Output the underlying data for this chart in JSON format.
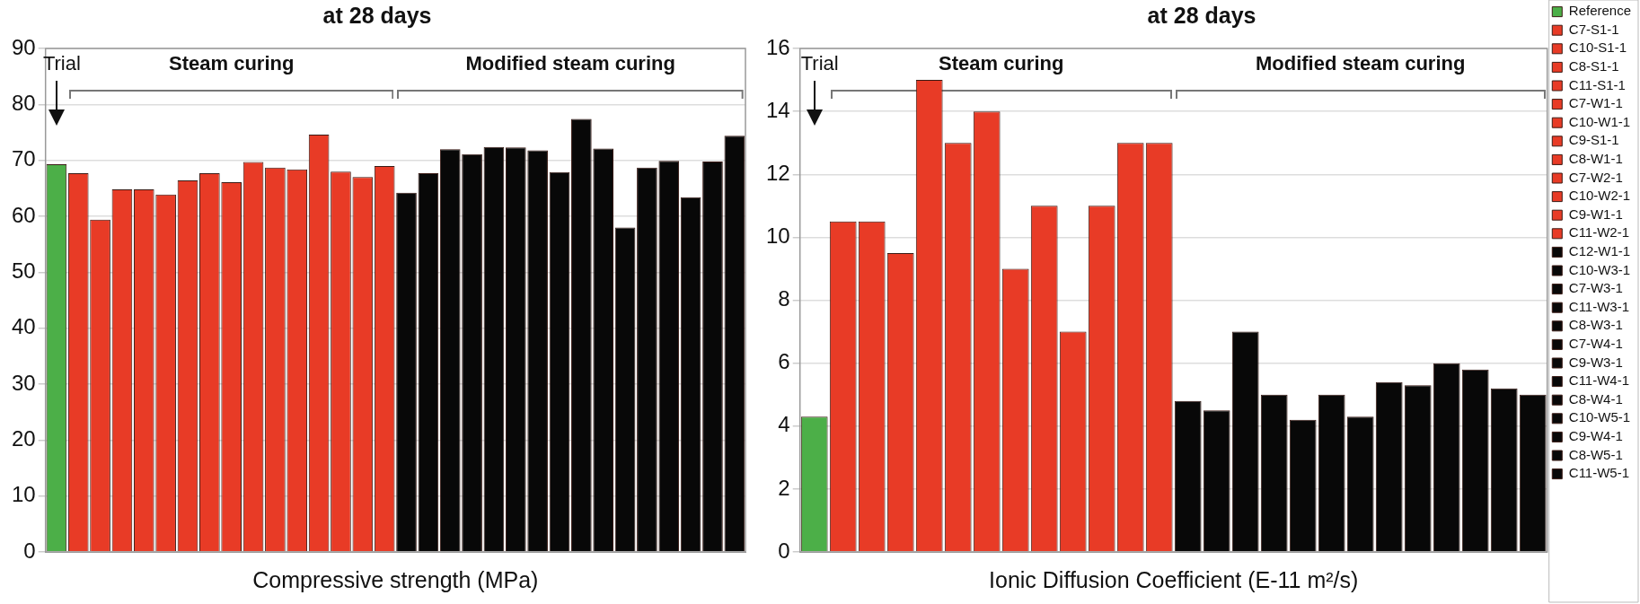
{
  "chart_data": [
    {
      "type": "bar",
      "title": "at 28 days",
      "xlabel": "Compressive strength (MPa)",
      "categories": [
        null,
        null,
        null,
        null,
        null,
        null,
        null,
        null,
        null,
        null,
        null,
        null,
        null,
        null,
        null,
        null,
        null,
        null,
        null,
        null,
        null,
        null,
        null,
        null,
        null,
        null,
        null,
        null,
        null,
        null,
        null,
        null
      ],
      "values": [
        69.3,
        67.7,
        59.4,
        64.8,
        64.8,
        63.9,
        66.4,
        67.7,
        66.1,
        69.7,
        68.7,
        68.4,
        74.6,
        68.0,
        67.0,
        69.0,
        64.2,
        67.7,
        72.0,
        71.1,
        72.4,
        72.3,
        71.8,
        67.9,
        77.4,
        72.1,
        58.0,
        68.7,
        69.9,
        63.4,
        69.8,
        74.4
      ],
      "colors": [
        "#4caf48",
        "#e83b26",
        "#e83b26",
        "#e83b26",
        "#e83b26",
        "#e83b26",
        "#e83b26",
        "#e83b26",
        "#e83b26",
        "#e83b26",
        "#e83b26",
        "#e83b26",
        "#e83b26",
        "#e83b26",
        "#e83b26",
        "#e83b26",
        "#080808",
        "#080808",
        "#080808",
        "#080808",
        "#080808",
        "#080808",
        "#080808",
        "#080808",
        "#080808",
        "#080808",
        "#080808",
        "#080808",
        "#080808",
        "#080808",
        "#080808",
        "#080808"
      ],
      "ylim": [
        0,
        90
      ],
      "yticks": [
        0,
        10,
        20,
        30,
        40,
        50,
        60,
        70,
        80,
        90
      ],
      "grid": "y",
      "tick_labels": "y",
      "annotations": [
        "Trial",
        "Steam curing",
        "Modified steam curing"
      ]
    },
    {
      "type": "bar",
      "title": "at 28 days",
      "xlabel": "Ionic Diffusion Coefficient (E-11 m²/s)",
      "categories": [
        null,
        null,
        null,
        null,
        null,
        null,
        null,
        null,
        null,
        null,
        null,
        null,
        null,
        null,
        null,
        null,
        null,
        null,
        null,
        null,
        null,
        null,
        null,
        null,
        null,
        null
      ],
      "series": [
        {
          "name": "Reference",
          "color": "#4caf48",
          "values": [
            4.3,
            null,
            null,
            null,
            null,
            null,
            null,
            null,
            null,
            null,
            null,
            null,
            null,
            null,
            null,
            null,
            null,
            null,
            null,
            null,
            null,
            null,
            null,
            null,
            null,
            null
          ]
        },
        {
          "name": "C7-S1-1",
          "color": "#e83b26",
          "values": [
            null,
            10.5,
            null,
            null,
            null,
            null,
            null,
            null,
            null,
            null,
            null,
            null,
            null,
            null,
            null,
            null,
            null,
            null,
            null,
            null,
            null,
            null,
            null,
            null,
            null,
            null
          ]
        },
        {
          "name": "C10-S1-1",
          "color": "#e83b26",
          "values": [
            null,
            null,
            10.5,
            null,
            null,
            null,
            null,
            null,
            null,
            null,
            null,
            null,
            null,
            null,
            null,
            null,
            null,
            null,
            null,
            null,
            null,
            null,
            null,
            null,
            null,
            null
          ]
        },
        {
          "name": "C8-S1-1",
          "color": "#e83b26",
          "values": [
            null,
            null,
            null,
            9.5,
            null,
            null,
            null,
            null,
            null,
            null,
            null,
            null,
            null,
            null,
            null,
            null,
            null,
            null,
            null,
            null,
            null,
            null,
            null,
            null,
            null,
            null
          ]
        },
        {
          "name": "C11-S1-1",
          "color": "#e83b26",
          "values": [
            null,
            null,
            null,
            null,
            15.0,
            null,
            null,
            null,
            null,
            null,
            null,
            null,
            null,
            null,
            null,
            null,
            null,
            null,
            null,
            null,
            null,
            null,
            null,
            null,
            null,
            null
          ]
        },
        {
          "name": "C7-W1-1",
          "color": "#e83b26",
          "values": [
            null,
            null,
            null,
            null,
            null,
            13.0,
            null,
            null,
            null,
            null,
            null,
            null,
            null,
            null,
            null,
            null,
            null,
            null,
            null,
            null,
            null,
            null,
            null,
            null,
            null,
            null
          ]
        },
        {
          "name": "C10-W1-1",
          "color": "#e83b26",
          "values": [
            null,
            null,
            null,
            null,
            null,
            null,
            14.0,
            null,
            null,
            null,
            null,
            null,
            null,
            null,
            null,
            null,
            null,
            null,
            null,
            null,
            null,
            null,
            null,
            null,
            null,
            null
          ]
        },
        {
          "name": "C9-S1-1",
          "color": "#e83b26",
          "values": [
            null,
            null,
            null,
            null,
            null,
            null,
            null,
            9.0,
            null,
            null,
            null,
            null,
            null,
            null,
            null,
            null,
            null,
            null,
            null,
            null,
            null,
            null,
            null,
            null,
            null,
            null
          ]
        },
        {
          "name": "C8-W1-1",
          "color": "#e83b26",
          "values": [
            null,
            null,
            null,
            null,
            null,
            null,
            null,
            null,
            11.0,
            null,
            null,
            null,
            null,
            null,
            null,
            null,
            null,
            null,
            null,
            null,
            null,
            null,
            null,
            null,
            null,
            null
          ]
        },
        {
          "name": "C7-W2-1",
          "color": "#e83b26",
          "values": [
            null,
            null,
            null,
            null,
            null,
            null,
            null,
            null,
            null,
            7.0,
            null,
            null,
            null,
            null,
            null,
            null,
            null,
            null,
            null,
            null,
            null,
            null,
            null,
            null,
            null,
            null
          ]
        },
        {
          "name": "C10-W2-1",
          "color": "#e83b26",
          "values": [
            null,
            null,
            null,
            null,
            null,
            null,
            null,
            null,
            null,
            null,
            11.0,
            null,
            null,
            null,
            null,
            null,
            null,
            null,
            null,
            null,
            null,
            null,
            null,
            null,
            null,
            null
          ]
        },
        {
          "name": "C9-W1-1",
          "color": "#e83b26",
          "values": [
            null,
            null,
            null,
            null,
            null,
            null,
            null,
            null,
            null,
            null,
            null,
            13.0,
            null,
            null,
            null,
            null,
            null,
            null,
            null,
            null,
            null,
            null,
            null,
            null,
            null,
            null
          ]
        },
        {
          "name": "C11-W2-1",
          "color": "#e83b26",
          "values": [
            null,
            null,
            null,
            null,
            null,
            null,
            null,
            null,
            null,
            null,
            null,
            null,
            13.0,
            null,
            null,
            null,
            null,
            null,
            null,
            null,
            null,
            null,
            null,
            null,
            null,
            null
          ]
        },
        {
          "name": "C12-W1-1",
          "color": "#080808",
          "values": [
            null,
            null,
            null,
            null,
            null,
            null,
            null,
            null,
            null,
            null,
            null,
            null,
            null,
            4.8,
            null,
            null,
            null,
            null,
            null,
            null,
            null,
            null,
            null,
            null,
            null,
            null
          ]
        },
        {
          "name": "C10-W3-1",
          "color": "#080808",
          "values": [
            null,
            null,
            null,
            null,
            null,
            null,
            null,
            null,
            null,
            null,
            null,
            null,
            null,
            null,
            4.5,
            null,
            null,
            null,
            null,
            null,
            null,
            null,
            null,
            null,
            null,
            null
          ]
        },
        {
          "name": "C7-W3-1",
          "color": "#080808",
          "values": [
            null,
            null,
            null,
            null,
            null,
            null,
            null,
            null,
            null,
            null,
            null,
            null,
            null,
            null,
            null,
            7.0,
            null,
            null,
            null,
            null,
            null,
            null,
            null,
            null,
            null,
            null
          ]
        },
        {
          "name": "C11-W3-1",
          "color": "#080808",
          "values": [
            null,
            null,
            null,
            null,
            null,
            null,
            null,
            null,
            null,
            null,
            null,
            null,
            null,
            null,
            null,
            null,
            5.0,
            null,
            null,
            null,
            null,
            null,
            null,
            null,
            null,
            null
          ]
        },
        {
          "name": "C8-W3-1",
          "color": "#080808",
          "values": [
            null,
            null,
            null,
            null,
            null,
            null,
            null,
            null,
            null,
            null,
            null,
            null,
            null,
            null,
            null,
            null,
            null,
            4.2,
            null,
            null,
            null,
            null,
            null,
            null,
            null,
            null
          ]
        },
        {
          "name": "C7-W4-1",
          "color": "#080808",
          "values": [
            null,
            null,
            null,
            null,
            null,
            null,
            null,
            null,
            null,
            null,
            null,
            null,
            null,
            null,
            null,
            null,
            null,
            null,
            5.0,
            null,
            null,
            null,
            null,
            null,
            null,
            null
          ]
        },
        {
          "name": "C9-W3-1",
          "color": "#080808",
          "values": [
            null,
            null,
            null,
            null,
            null,
            null,
            null,
            null,
            null,
            null,
            null,
            null,
            null,
            null,
            null,
            null,
            null,
            null,
            null,
            4.3,
            null,
            null,
            null,
            null,
            null,
            null
          ]
        },
        {
          "name": "C11-W4-1",
          "color": "#080808",
          "values": [
            null,
            null,
            null,
            null,
            null,
            null,
            null,
            null,
            null,
            null,
            null,
            null,
            null,
            null,
            null,
            null,
            null,
            null,
            null,
            null,
            5.4,
            null,
            null,
            null,
            null,
            null
          ]
        },
        {
          "name": "C8-W4-1",
          "color": "#080808",
          "values": [
            null,
            null,
            null,
            null,
            null,
            null,
            null,
            null,
            null,
            null,
            null,
            null,
            null,
            null,
            null,
            null,
            null,
            null,
            null,
            null,
            null,
            5.3,
            null,
            null,
            null,
            null
          ]
        },
        {
          "name": "C10-W5-1",
          "color": "#080808",
          "values": [
            null,
            null,
            null,
            null,
            null,
            null,
            null,
            null,
            null,
            null,
            null,
            null,
            null,
            null,
            null,
            null,
            null,
            null,
            null,
            null,
            null,
            null,
            6.0,
            null,
            null,
            null
          ]
        },
        {
          "name": "C9-W4-1",
          "color": "#080808",
          "values": [
            null,
            null,
            null,
            null,
            null,
            null,
            null,
            null,
            null,
            null,
            null,
            null,
            null,
            null,
            null,
            null,
            null,
            null,
            null,
            null,
            null,
            null,
            null,
            5.8,
            null,
            null
          ]
        },
        {
          "name": "C8-W5-1",
          "color": "#080808",
          "values": [
            null,
            null,
            null,
            null,
            null,
            null,
            null,
            null,
            null,
            null,
            null,
            null,
            null,
            null,
            null,
            null,
            null,
            null,
            null,
            null,
            null,
            null,
            null,
            null,
            5.2,
            null
          ]
        },
        {
          "name": "C11-W5-1",
          "color": "#080808",
          "values": [
            null,
            null,
            null,
            null,
            null,
            null,
            null,
            null,
            null,
            null,
            null,
            null,
            null,
            null,
            null,
            null,
            null,
            null,
            null,
            null,
            null,
            null,
            null,
            null,
            null,
            5.0
          ]
        }
      ],
      "ylim": [
        0,
        16
      ],
      "yticks": [
        0,
        2,
        4,
        6,
        8,
        10,
        12,
        14,
        16
      ],
      "grid": "y",
      "tick_labels": "y",
      "legend": "right",
      "annotations": [
        "Trial",
        "Steam curing",
        "Modified steam curing"
      ]
    }
  ]
}
